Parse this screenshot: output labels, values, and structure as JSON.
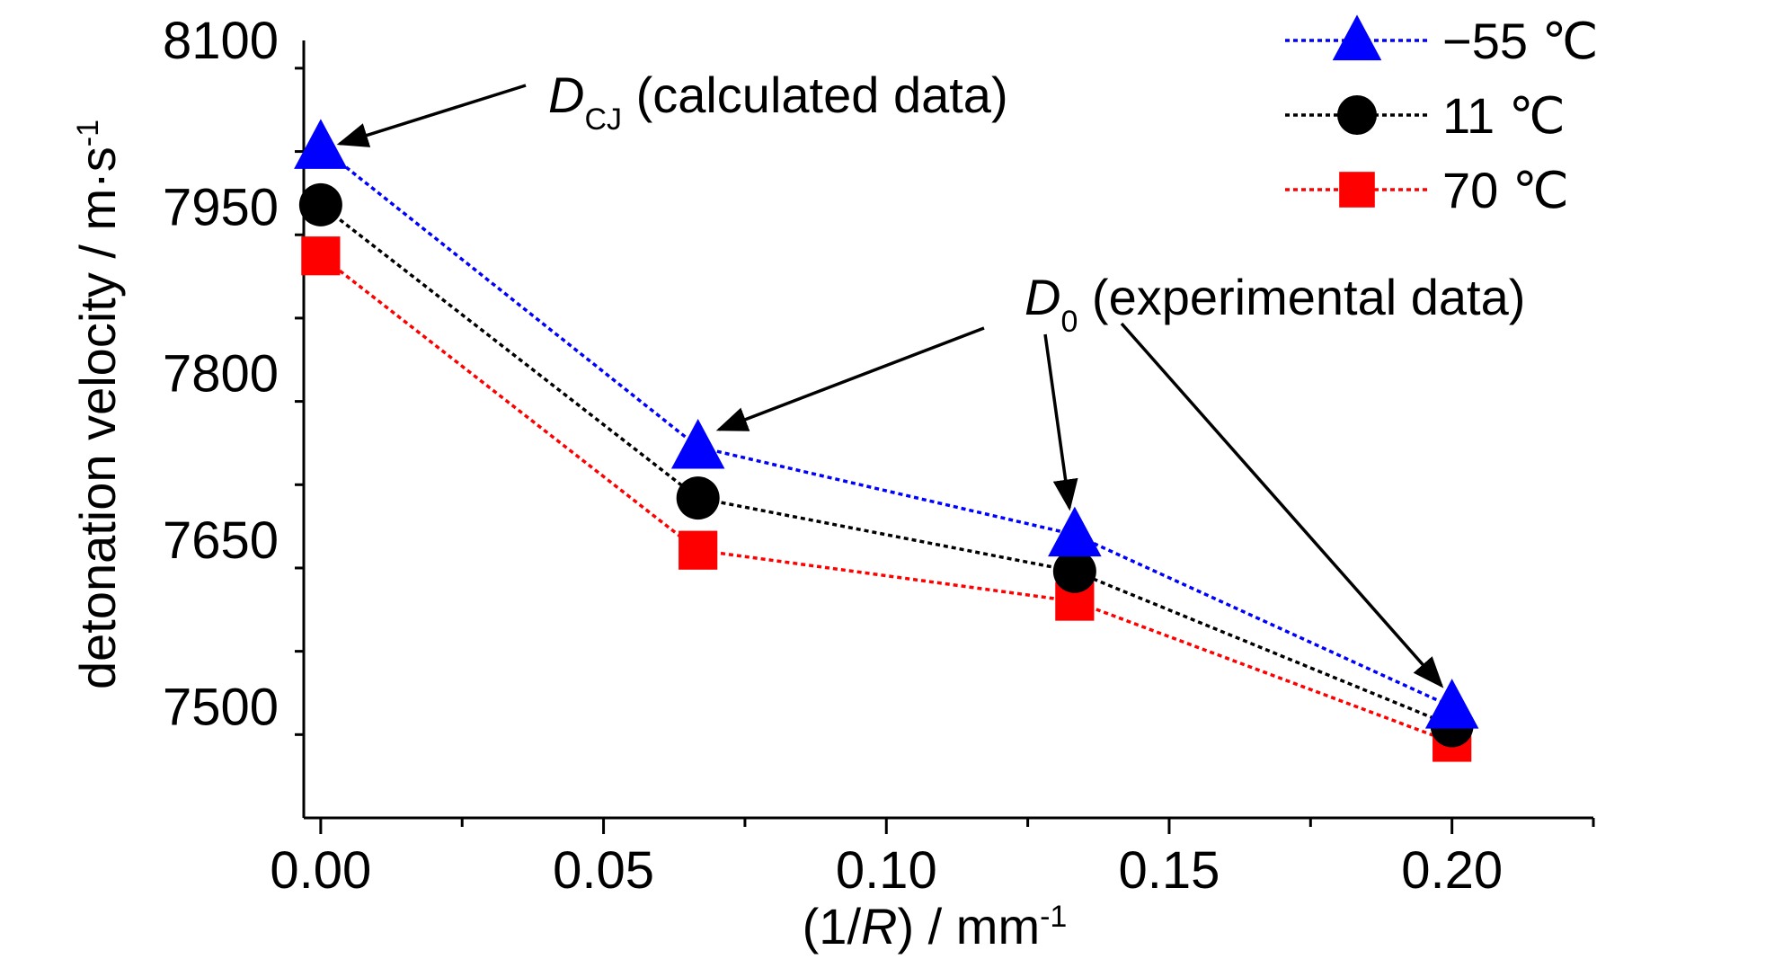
{
  "chart_data": {
    "type": "line",
    "x": [
      0.0,
      0.0667,
      0.1333,
      0.2
    ],
    "series": [
      {
        "name": "−55 ℃",
        "marker": "triangle",
        "color": "#0000ff",
        "values": [
          8004,
          7734,
          7655,
          7500
        ]
      },
      {
        "name": "11 ℃",
        "marker": "circle",
        "color": "#000000",
        "values": [
          7952,
          7688,
          7622,
          7483
        ]
      },
      {
        "name": "70 ℃",
        "marker": "square",
        "color": "#ff0000",
        "values": [
          7906,
          7641,
          7595,
          7468
        ]
      }
    ],
    "xlim": [
      -0.003,
      0.225
    ],
    "ylim": [
      7400,
      8100
    ],
    "xticks": [
      {
        "value": 0.0,
        "label": "0.00"
      },
      {
        "value": 0.05,
        "label": "0.05"
      },
      {
        "value": 0.1,
        "label": "0.10"
      },
      {
        "value": 0.15,
        "label": "0.15"
      },
      {
        "value": 0.2,
        "label": "0.20"
      }
    ],
    "yticks": [
      {
        "value": 7500,
        "label": "7500"
      },
      {
        "value": 7650,
        "label": "7650"
      },
      {
        "value": 7800,
        "label": "7800"
      },
      {
        "value": 7950,
        "label": "7950"
      },
      {
        "value": 8100,
        "label": "8100"
      }
    ],
    "xlabel": {
      "prefix": "(1/",
      "italic": "R",
      "suffix": ") / mm",
      "sup": "-1"
    },
    "ylabel": {
      "text": "detonation velocity / m·s",
      "sup": "-1"
    },
    "annotations": {
      "dcj": {
        "symbol": "D",
        "sub": "CJ",
        "text": " (calculated data)"
      },
      "d0": {
        "symbol": "D",
        "sub": "0",
        "text": " (experimental data)"
      }
    },
    "grid": false,
    "legend": "top-right",
    "line_style": "dotted"
  }
}
